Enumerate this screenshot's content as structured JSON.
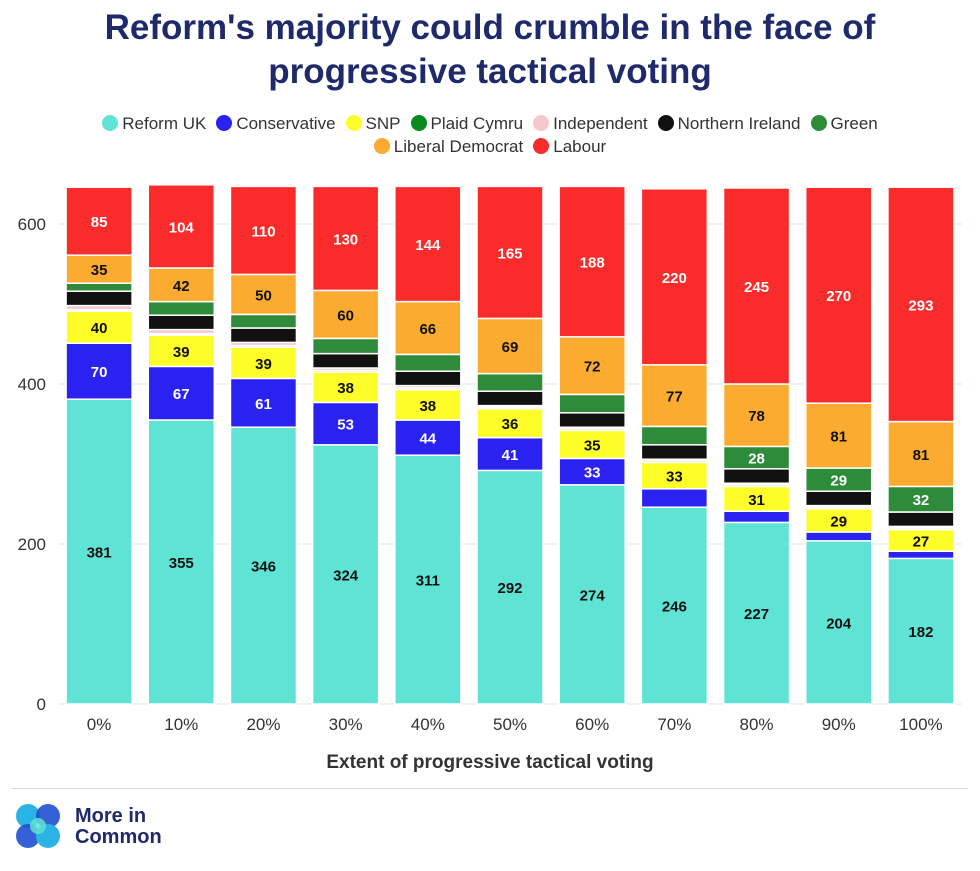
{
  "title_lines": [
    "Reform's majority could crumble in the face of",
    "progressive tactical voting"
  ],
  "logo": {
    "line1": "More in",
    "line2": "Common"
  },
  "chart_data": {
    "type": "bar",
    "stacked": true,
    "title": "Reform's majority could crumble in the face of progressive tactical voting",
    "xlabel": "Extent of progressive tactical voting",
    "ylabel": "",
    "ylim": [
      0,
      650
    ],
    "yticks": [
      0,
      200,
      400,
      600
    ],
    "grid": true,
    "legend_position": "top",
    "categories": [
      "0%",
      "10%",
      "20%",
      "30%",
      "40%",
      "50%",
      "60%",
      "70%",
      "80%",
      "90%",
      "100%"
    ],
    "legend": [
      {
        "name": "Reform UK",
        "color": "#5ee3d4"
      },
      {
        "name": "Conservative",
        "color": "#2a22f0"
      },
      {
        "name": "SNP",
        "color": "#fdfd2a"
      },
      {
        "name": "Plaid Cymru",
        "color": "#0b8a1e"
      },
      {
        "name": "Independent",
        "color": "#f5c6cc"
      },
      {
        "name": "Northern Ireland",
        "color": "#111111"
      },
      {
        "name": "Green",
        "color": "#2e8b3a"
      },
      {
        "name": "Liberal Democrat",
        "color": "#fbab2f"
      },
      {
        "name": "Labour",
        "color": "#f92b2b"
      }
    ],
    "series": [
      {
        "name": "Reform UK",
        "color": "#5ee3d4",
        "label_color": "#111111",
        "labeled": true,
        "values": [
          381,
          355,
          346,
          324,
          311,
          292,
          274,
          246,
          227,
          204,
          182
        ]
      },
      {
        "name": "Conservative",
        "color": "#2a22f0",
        "label_color": "#ffffff",
        "labeled": true,
        "values": [
          70,
          67,
          61,
          53,
          44,
          41,
          33,
          23,
          14,
          11,
          9
        ]
      },
      {
        "name": "SNP",
        "color": "#fdfd2a",
        "label_color": "#111111",
        "labeled": true,
        "values": [
          40,
          39,
          39,
          38,
          38,
          36,
          35,
          33,
          31,
          29,
          27
        ]
      },
      {
        "name": "Plaid Cymru",
        "color": "#0b8a1e",
        "label_color": "#ffffff",
        "labeled": false,
        "values": [
          2,
          2,
          2,
          2,
          2,
          2,
          2,
          2,
          2,
          2,
          2
        ]
      },
      {
        "name": "Independent",
        "color": "#f5c6cc",
        "label_color": "#111111",
        "labeled": false,
        "values": [
          5,
          5,
          4,
          3,
          3,
          2,
          2,
          2,
          2,
          2,
          2
        ]
      },
      {
        "name": "Northern Ireland",
        "color": "#111111",
        "label_color": "#ffffff",
        "labeled": false,
        "values": [
          18,
          18,
          18,
          18,
          18,
          18,
          18,
          18,
          18,
          18,
          18
        ]
      },
      {
        "name": "Green",
        "color": "#2e8b3a",
        "label_color": "#ffffff",
        "labeled": true,
        "values": [
          10,
          17,
          17,
          19,
          21,
          22,
          23,
          23,
          28,
          29,
          32
        ]
      },
      {
        "name": "Liberal Democrat",
        "color": "#fbab2f",
        "label_color": "#111111",
        "labeled": true,
        "values": [
          35,
          42,
          50,
          60,
          66,
          69,
          72,
          77,
          78,
          81,
          81
        ]
      },
      {
        "name": "Labour",
        "color": "#f92b2b",
        "label_color": "#ffffff",
        "labeled": true,
        "values": [
          85,
          104,
          110,
          130,
          144,
          165,
          188,
          220,
          245,
          270,
          293
        ]
      }
    ],
    "data_labels": {
      "Conservative": [
        "70",
        "67",
        "61",
        "53",
        "44",
        "41",
        "33",
        "",
        "",
        "",
        ""
      ],
      "Green": [
        "",
        "",
        "",
        "",
        "",
        "",
        "",
        "",
        "28",
        "29",
        "32"
      ]
    }
  }
}
